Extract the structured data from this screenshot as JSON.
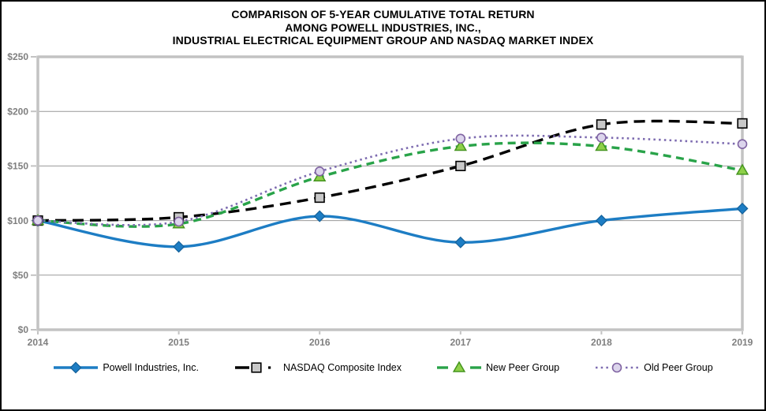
{
  "window": {
    "background": "#ffffff",
    "border_color": "#000000"
  },
  "chart_data": {
    "type": "line",
    "title_lines": [
      "COMPARISON OF 5-YEAR CUMULATIVE TOTAL RETURN",
      "AMONG POWELL INDUSTRIES, INC.,",
      "INDUSTRIAL ELECTRICAL EQUIPMENT GROUP AND NASDAQ MARKET INDEX"
    ],
    "categories": [
      "2014",
      "2015",
      "2016",
      "2017",
      "2018",
      "2019"
    ],
    "ylim": [
      0,
      250
    ],
    "y_ticks": [
      {
        "label": "$0",
        "value": 0
      },
      {
        "label": "$50",
        "value": 50
      },
      {
        "label": "$100",
        "value": 100
      },
      {
        "label": "$150",
        "value": 150
      },
      {
        "label": "$200",
        "value": 200
      },
      {
        "label": "$250",
        "value": 250
      }
    ],
    "grid": true,
    "line_smoothing": true,
    "legend_position": "bottom",
    "series": [
      {
        "name": "Powell Industries, Inc.",
        "values": [
          100,
          76,
          104,
          80,
          100,
          111
        ],
        "color": "#1D7DC4",
        "line_style": "solid",
        "line_width": 3.4,
        "marker": "diamond",
        "marker_fill": "#1D7DC4",
        "marker_stroke": "#15639C"
      },
      {
        "name": "NASDAQ Composite Index",
        "values": [
          100,
          103,
          121,
          150,
          188,
          189
        ],
        "color": "#000000",
        "line_style": "long-dash",
        "line_width": 3.4,
        "marker": "square",
        "marker_fill": "#C8C8C8",
        "marker_stroke": "#000000"
      },
      {
        "name": "New Peer Group",
        "values": [
          100,
          97,
          140,
          168,
          168,
          146
        ],
        "color": "#29A349",
        "line_style": "dash",
        "line_width": 3.4,
        "marker": "triangle",
        "marker_fill": "#8ED049",
        "marker_stroke": "#45951F"
      },
      {
        "name": "Old Peer Group",
        "values": [
          100,
          99,
          145,
          175,
          176,
          170
        ],
        "color": "#7D6BB0",
        "line_style": "dot",
        "line_width": 2.6,
        "marker": "circle",
        "marker_fill": "#DCD5EC",
        "marker_stroke": "#8064A2"
      }
    ],
    "colors": {
      "gridline": "#999999",
      "axis_border": "#C3C3C3",
      "tick_label": "#7F7F7F",
      "title": "#000000",
      "legend_text": "#000000"
    }
  }
}
